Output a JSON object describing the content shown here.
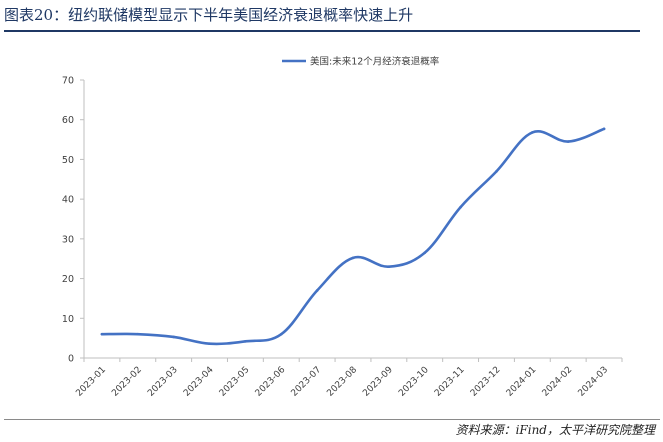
{
  "figure": {
    "title": "图表20：纽约联储模型显示下半年美国经济衰退概率快速上升",
    "source": "资料来源：iFind，太平洋研究院整理"
  },
  "colors": {
    "line": "#4472c4",
    "axis": "#bfbfbf",
    "text": "#404040",
    "title": "#1f3864"
  },
  "chart_data": {
    "type": "line",
    "categories": [
      "2023-01",
      "2023-02",
      "2023-03",
      "2023-04",
      "2023-05",
      "2023-06",
      "2023-07",
      "2023-08",
      "2023-09",
      "2023-10",
      "2023-11",
      "2023-12",
      "2024-01",
      "2024-02",
      "2024-03"
    ],
    "series": [
      {
        "name": "美国:未来12个月经济衰退概率",
        "values": [
          6.0,
          6.0,
          5.3,
          3.6,
          4.2,
          6.0,
          17.0,
          25.2,
          23.0,
          26.5,
          38.0,
          47.0,
          56.8,
          54.5,
          57.7
        ]
      }
    ],
    "y_ticks": [
      0,
      10,
      20,
      30,
      40,
      50,
      60,
      70
    ],
    "ylim": [
      0,
      70
    ],
    "legend_position": "top",
    "grid": false
  }
}
